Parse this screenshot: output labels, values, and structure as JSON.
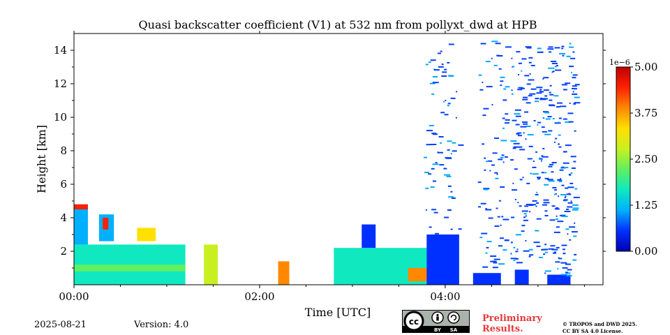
{
  "chart_data": {
    "type": "heatmap",
    "title": "Quasi backscatter coefficient (V1) at 532 nm from pollyxt_dwd at HPB",
    "xlabel": "Time [UTC]",
    "ylabel": "Height [km]",
    "xlim_hours": [
      0,
      5.7
    ],
    "ylim_km": [
      0,
      15.0
    ],
    "x_ticks": [
      {
        "value": 0,
        "label": "00:00"
      },
      {
        "value": 2,
        "label": "02:00"
      },
      {
        "value": 4,
        "label": "04:00"
      }
    ],
    "y_ticks": [
      {
        "value": 2,
        "label": "2"
      },
      {
        "value": 4,
        "label": "4"
      },
      {
        "value": 6,
        "label": "6"
      },
      {
        "value": 8,
        "label": "8"
      },
      {
        "value": 10,
        "label": "10"
      },
      {
        "value": 12,
        "label": "12"
      },
      {
        "value": 14,
        "label": "14"
      }
    ],
    "colorbar": {
      "min": 0.0,
      "max": 5.0,
      "exponent_label": "1e−6",
      "ticks": [
        {
          "value": 0.0,
          "label": "0.00"
        },
        {
          "value": 1.25,
          "label": "1.25"
        },
        {
          "value": 2.5,
          "label": "2.50"
        },
        {
          "value": 3.75,
          "label": "3.75"
        },
        {
          "value": 5.0,
          "label": "5.00"
        }
      ],
      "colormap": [
        "#0000b0",
        "#0030ff",
        "#00b0ff",
        "#10e8c0",
        "#60f060",
        "#c8f020",
        "#ffe000",
        "#ff8800",
        "#ff2000",
        "#c00000"
      ]
    },
    "regions": [
      {
        "name": "layer-a-low",
        "t0": 0.0,
        "t1": 1.2,
        "h0": 0.0,
        "h1": 2.4,
        "value": 1.5
      },
      {
        "name": "layer-a-band",
        "t0": 0.0,
        "t1": 1.2,
        "h0": 0.8,
        "h1": 1.2,
        "value": 2.4
      },
      {
        "name": "layer-a-upper",
        "t0": 0.0,
        "t1": 0.15,
        "h0": 2.4,
        "h1": 4.8,
        "value": 0.9
      },
      {
        "name": "cloud-top-a",
        "t0": 0.0,
        "t1": 0.15,
        "h0": 4.5,
        "h1": 4.8,
        "value": 4.2
      },
      {
        "name": "plume-b",
        "t0": 0.27,
        "t1": 0.43,
        "h0": 2.6,
        "h1": 4.2,
        "value": 1.0
      },
      {
        "name": "plume-b-core",
        "t0": 0.31,
        "t1": 0.37,
        "h0": 3.3,
        "h1": 4.0,
        "value": 4.6
      },
      {
        "name": "blob-c",
        "t0": 0.68,
        "t1": 0.88,
        "h0": 2.6,
        "h1": 3.4,
        "value": 3.6
      },
      {
        "name": "strip-d",
        "t0": 1.4,
        "t1": 1.55,
        "h0": 0.0,
        "h1": 2.4,
        "value": 2.7
      },
      {
        "name": "strip-e",
        "t0": 2.2,
        "t1": 2.32,
        "h0": 0.0,
        "h1": 1.4,
        "value": 3.8
      },
      {
        "name": "layer-f",
        "t0": 2.8,
        "t1": 4.0,
        "h0": 0.0,
        "h1": 2.2,
        "value": 1.6
      },
      {
        "name": "layer-f-hot",
        "t0": 3.6,
        "t1": 3.85,
        "h0": 0.2,
        "h1": 1.0,
        "value": 3.9
      },
      {
        "name": "tower-f",
        "t0": 3.1,
        "t1": 3.25,
        "h0": 2.2,
        "h1": 3.6,
        "value": 0.5
      },
      {
        "name": "layer-g",
        "t0": 3.8,
        "t1": 4.15,
        "h0": 0.0,
        "h1": 3.0,
        "value": 0.4
      },
      {
        "name": "layer-h-base",
        "t0": 4.3,
        "t1": 4.6,
        "h0": 0.0,
        "h1": 0.7,
        "value": 0.3
      },
      {
        "name": "layer-i-base",
        "t0": 4.75,
        "t1": 4.9,
        "h0": 0.0,
        "h1": 0.9,
        "value": 0.3
      },
      {
        "name": "layer-j-base",
        "t0": 5.1,
        "t1": 5.35,
        "h0": 0.0,
        "h1": 0.6,
        "value": 0.3
      }
    ],
    "noise_columns": [
      {
        "t0": 3.75,
        "t1": 4.15,
        "h0": 3.0,
        "h1": 14.5,
        "density": 0.04
      },
      {
        "t0": 4.35,
        "t1": 4.65,
        "h0": 1.0,
        "h1": 14.7,
        "density": 0.05
      },
      {
        "t0": 4.7,
        "t1": 5.0,
        "h0": 1.0,
        "h1": 14.7,
        "density": 0.07
      },
      {
        "t0": 5.0,
        "t1": 5.4,
        "h0": 0.4,
        "h1": 14.7,
        "density": 0.09
      }
    ]
  },
  "footer": {
    "date": "2025-08-21",
    "version": "Version: 4.0",
    "preliminary_line1": "Preliminary",
    "preliminary_line2": "Results.",
    "copyright_line1": "© TROPOS and DWD 2025.",
    "copyright_line2": "CC BY SA 4.0 License.",
    "license_badge_by": "BY",
    "license_badge_sa": "SA"
  }
}
